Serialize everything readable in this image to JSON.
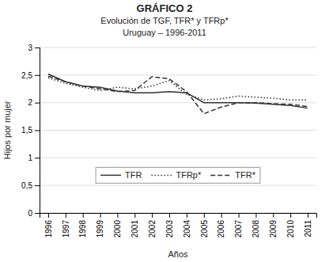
{
  "chart_data": {
    "type": "line",
    "title": "GRÁFICO 2",
    "subtitle": [
      "Evolución de TGF, TFR* y TFRp*",
      "Uruguay – 1996-2011"
    ],
    "x_label": "Años",
    "y_label": "Hijos por mujer",
    "x": [
      1996,
      1997,
      1998,
      1999,
      2000,
      2001,
      2002,
      2003,
      2004,
      2005,
      2006,
      2007,
      2008,
      2009,
      2010,
      2011
    ],
    "series": [
      {
        "name": "TFR",
        "color": "#333333",
        "line_style": "solid",
        "values": [
          2.52,
          2.38,
          2.3,
          2.28,
          2.21,
          2.18,
          2.18,
          2.2,
          2.18,
          2.0,
          2.0,
          2.0,
          1.99,
          1.97,
          1.95,
          1.9
        ]
      },
      {
        "name": "TFRp*",
        "color": "#333333",
        "line_style": "dotted",
        "values": [
          2.45,
          2.35,
          2.28,
          2.22,
          2.28,
          2.25,
          2.3,
          2.4,
          2.15,
          2.05,
          2.07,
          2.12,
          2.1,
          2.08,
          2.05,
          2.05
        ]
      },
      {
        "name": "TFR*",
        "color": "#333333",
        "line_style": "dashed",
        "values": [
          2.48,
          2.38,
          2.3,
          2.25,
          2.2,
          2.22,
          2.47,
          2.43,
          2.2,
          1.8,
          1.92,
          2.0,
          2.0,
          1.98,
          1.97,
          1.93
        ]
      }
    ],
    "xlim": [
      1995.5,
      2011.5
    ],
    "xticks": [
      1996,
      1997,
      1998,
      1999,
      2000,
      2001,
      2002,
      2003,
      2004,
      2005,
      2006,
      2007,
      2008,
      2009,
      2010,
      2011
    ],
    "ylim": [
      0,
      3
    ],
    "yticks": [
      0,
      {
        "value": 0.5,
        "label": "0,5"
      },
      1,
      {
        "value": 1.5,
        "label": "1,5"
      },
      2,
      {
        "value": 2.5,
        "label": "2,5"
      },
      3
    ],
    "grid": "y",
    "legend": "lower center"
  }
}
